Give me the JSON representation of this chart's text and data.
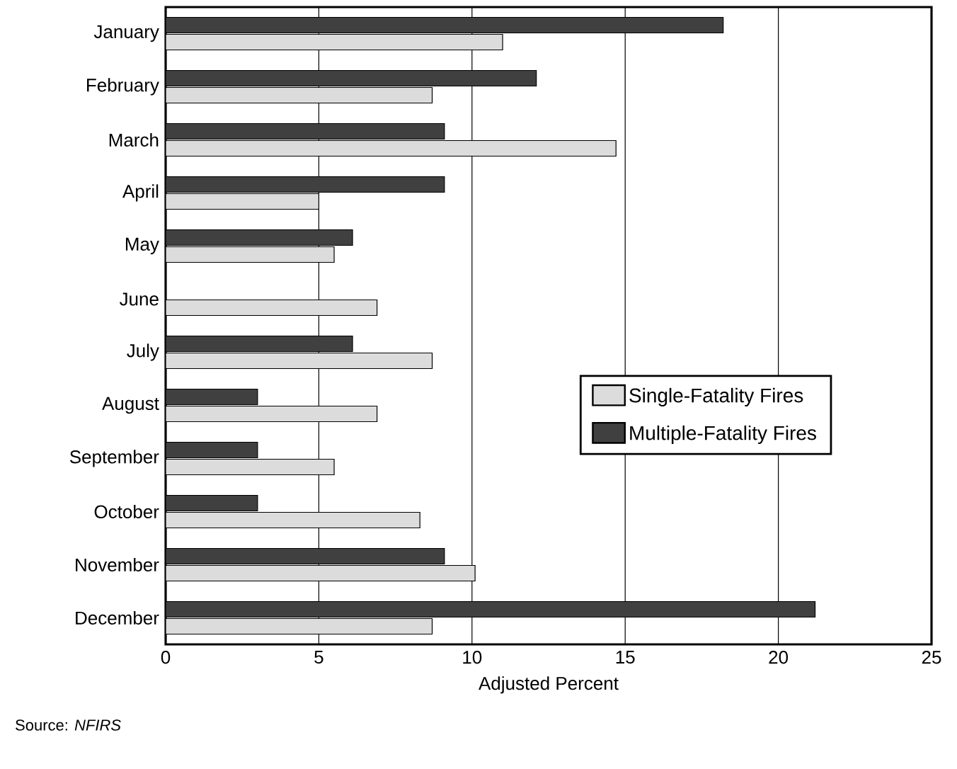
{
  "chart_data": {
    "type": "bar",
    "orientation": "horizontal",
    "xlabel": "Adjusted Percent",
    "categories": [
      "January",
      "February",
      "March",
      "April",
      "May",
      "June",
      "July",
      "August",
      "September",
      "October",
      "November",
      "December"
    ],
    "series": [
      {
        "name": "Single-Fatality Fires",
        "color": "#dcdcdc",
        "values": [
          11.0,
          8.7,
          14.7,
          5.0,
          5.5,
          6.9,
          8.7,
          6.9,
          5.5,
          8.3,
          10.1,
          8.7
        ]
      },
      {
        "name": "Multiple-Fatality Fires",
        "color": "#404040",
        "values": [
          18.2,
          12.1,
          9.1,
          9.1,
          6.1,
          null,
          6.1,
          3.0,
          3.0,
          3.0,
          9.1,
          21.2
        ]
      }
    ],
    "xlim": [
      0,
      25
    ],
    "xticks": [
      0,
      5,
      10,
      15,
      20,
      25
    ],
    "grid": "x",
    "legend": "center right",
    "annotations": [
      "Source: *NFIRS*"
    ]
  }
}
